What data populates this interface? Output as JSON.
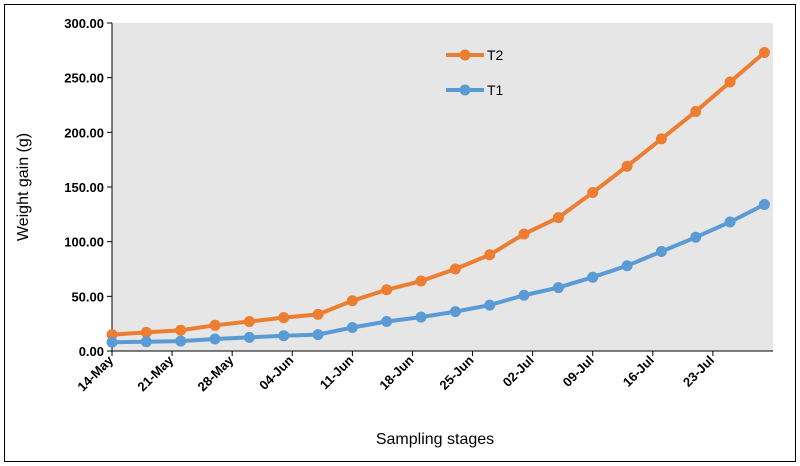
{
  "chart_data": {
    "type": "line",
    "x_label": "Sampling stages",
    "y_label": "Weight gain (g)",
    "x": [
      0,
      4,
      8,
      12,
      16,
      20,
      24,
      28,
      32,
      36,
      40,
      44,
      48,
      52,
      56,
      60,
      64,
      68,
      72,
      76
    ],
    "xlim": [
      0,
      77
    ],
    "xticks": [
      {
        "value": 0,
        "label": "14-May"
      },
      {
        "value": 7,
        "label": "21-May"
      },
      {
        "value": 14,
        "label": "28-May"
      },
      {
        "value": 21,
        "label": "04-Jun"
      },
      {
        "value": 28,
        "label": "11-Jun"
      },
      {
        "value": 35,
        "label": "18-Jun"
      },
      {
        "value": 42,
        "label": "25-Jun"
      },
      {
        "value": 49,
        "label": "02-Jul"
      },
      {
        "value": 56,
        "label": "09-Jul"
      },
      {
        "value": 63,
        "label": "16-Jul"
      },
      {
        "value": 70,
        "label": "23-Jul"
      }
    ],
    "ylim": [
      0,
      300
    ],
    "yticks": [
      {
        "value": 0,
        "label": "0.00"
      },
      {
        "value": 50,
        "label": "50.00"
      },
      {
        "value": 100,
        "label": "100.00"
      },
      {
        "value": 150,
        "label": "150.00"
      },
      {
        "value": 200,
        "label": "200.00"
      },
      {
        "value": 250,
        "label": "250.00"
      },
      {
        "value": 300,
        "label": "300.00"
      }
    ],
    "grid": false,
    "legend": "top",
    "series": [
      {
        "name": "T2",
        "color": "#ed7d31",
        "values": [
          15,
          17,
          19,
          23.5,
          27,
          30.5,
          33.5,
          46,
          56,
          64,
          75,
          88,
          107,
          122,
          145,
          169,
          194,
          219,
          246,
          273
        ]
      },
      {
        "name": "T1",
        "color": "#5b9bd5",
        "values": [
          8,
          8.5,
          9,
          11,
          12.5,
          14,
          15,
          21.5,
          27,
          31,
          36,
          42,
          51,
          58,
          67.5,
          78,
          91,
          104,
          118,
          134
        ]
      }
    ]
  }
}
